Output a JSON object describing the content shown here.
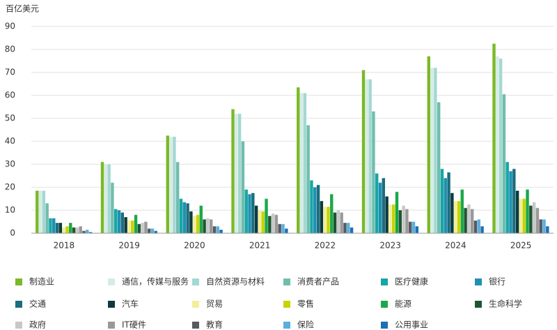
{
  "chart_data": {
    "type": "bar",
    "y_label": "百亿美元",
    "categories": [
      "2018",
      "2019",
      "2020",
      "2021",
      "2022",
      "2023",
      "2024",
      "2025"
    ],
    "ylim": [
      0,
      90
    ],
    "yticks": [
      0,
      10,
      20,
      30,
      40,
      50,
      60,
      70,
      80,
      90
    ],
    "grid": true,
    "series": [
      {
        "name": "制造业",
        "color": "#7ab929",
        "values": [
          18.5,
          31,
          42.5,
          54,
          63.5,
          71,
          77,
          82.5
        ]
      },
      {
        "name": "通信，传媒与服务",
        "color": "#d5ece5",
        "values": [
          18.5,
          30,
          42,
          52,
          61,
          67,
          72,
          77
        ]
      },
      {
        "name": "自然资源与材料",
        "color": "#a4d8d2",
        "values": [
          18.5,
          30,
          42,
          52,
          61,
          67,
          72,
          76
        ]
      },
      {
        "name": "消费者产品",
        "color": "#70bdad",
        "values": [
          13,
          22,
          31,
          40,
          47,
          53,
          57,
          60.5
        ]
      },
      {
        "name": "医疗健康",
        "color": "#17a6a6",
        "values": [
          6.5,
          10.5,
          15,
          19,
          23,
          26,
          28,
          31
        ]
      },
      {
        "name": "银行",
        "color": "#1f90b2",
        "values": [
          6.5,
          10,
          13.5,
          17,
          20,
          22,
          24,
          27
        ]
      },
      {
        "name": "交通",
        "color": "#1b6e7e",
        "values": [
          4.5,
          9,
          13,
          17.5,
          21,
          24,
          26.5,
          28
        ]
      },
      {
        "name": "汽车",
        "color": "#0d3a3e",
        "values": [
          4.5,
          7,
          9.5,
          12,
          14,
          16,
          17.5,
          18.5
        ]
      },
      {
        "name": "贸易",
        "color": "#f2ee9b",
        "values": [
          2.5,
          5.5,
          7.5,
          10,
          11.5,
          12.5,
          14,
          15
        ]
      },
      {
        "name": "零售",
        "color": "#c6d400",
        "values": [
          3,
          5.5,
          8,
          9.5,
          11.5,
          12.5,
          14,
          15
        ]
      },
      {
        "name": "能源",
        "color": "#1aa84a",
        "values": [
          4.5,
          8,
          12,
          15,
          17,
          18,
          19,
          19
        ]
      },
      {
        "name": "生命科学",
        "color": "#1e5632",
        "values": [
          2.5,
          4,
          6,
          7.5,
          9,
          10,
          11,
          12
        ]
      },
      {
        "name": "政府",
        "color": "#c8c8c8",
        "values": [
          2.5,
          4.5,
          6.5,
          8.5,
          10,
          12,
          12.5,
          13.5
        ]
      },
      {
        "name": "IT硬件",
        "color": "#999999",
        "values": [
          3,
          5,
          6,
          8,
          9,
          10.5,
          10.5,
          11
        ]
      },
      {
        "name": "教育",
        "color": "#555a60",
        "values": [
          1,
          2,
          3,
          4,
          4.5,
          5,
          5.5,
          6
        ]
      },
      {
        "name": "保险",
        "color": "#5baee0",
        "values": [
          1.5,
          2,
          3,
          4,
          4.5,
          5,
          6,
          6
        ]
      },
      {
        "name": "公用事业",
        "color": "#1e6fb5",
        "values": [
          0.5,
          1,
          1.5,
          2,
          2.5,
          3,
          3,
          3
        ]
      }
    ]
  }
}
